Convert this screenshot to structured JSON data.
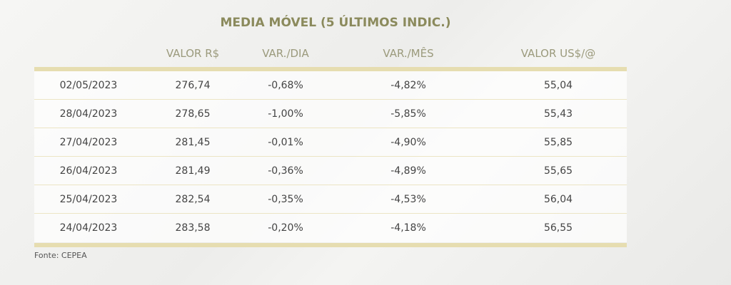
{
  "header": {
    "title": "MEDIA MÓVEL (5 ÚLTIMOS INDIC.)"
  },
  "table": {
    "columns": [
      "",
      "VALOR R$",
      "VAR./DIA",
      "VAR./MÊS",
      "VALOR US$/@"
    ],
    "rows": [
      [
        "02/05/2023",
        "276,74",
        "-0,68%",
        "-4,82%",
        "55,04"
      ],
      [
        "28/04/2023",
        "278,65",
        "-1,00%",
        "-5,85%",
        "55,43"
      ],
      [
        "27/04/2023",
        "281,45",
        "-0,01%",
        "-4,90%",
        "55,85"
      ],
      [
        "26/04/2023",
        "281,49",
        "-0,36%",
        "-4,89%",
        "55,65"
      ],
      [
        "25/04/2023",
        "282,54",
        "-0,35%",
        "-4,53%",
        "56,04"
      ],
      [
        "24/04/2023",
        "283,58",
        "-0,20%",
        "-4,18%",
        "56,55"
      ]
    ]
  },
  "footer": {
    "source": "Fonte: CEPEA"
  }
}
